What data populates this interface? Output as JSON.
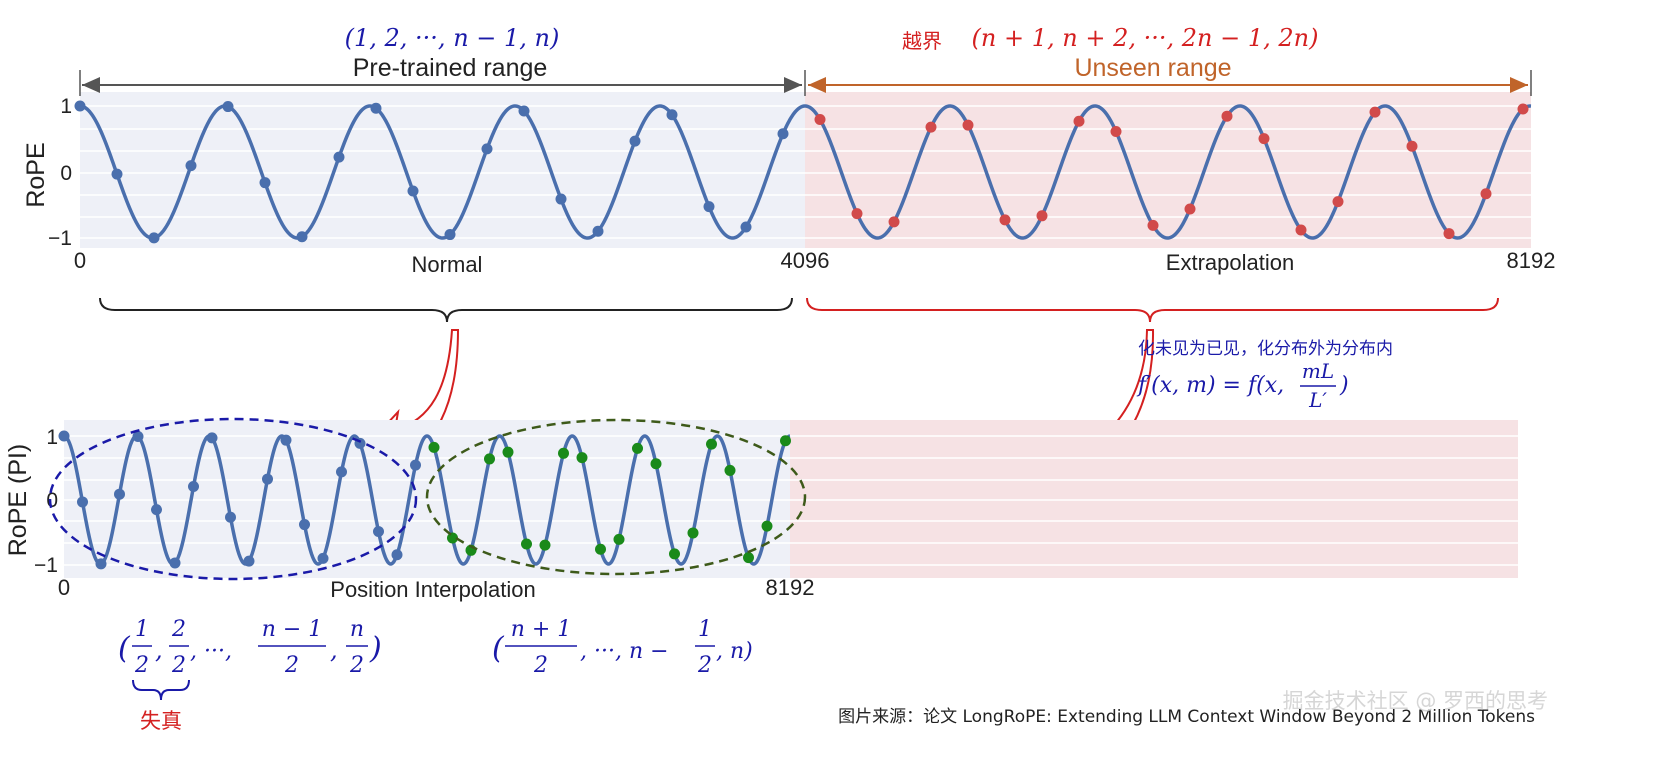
{
  "top": {
    "pretrained_label": "Pre-trained range",
    "pretrained_math": "(1, 2, ···, n − 1, n)",
    "unseen_label": "Unseen range",
    "unseen_prefix_cn": "越界",
    "unseen_math": "(n + 1, n + 2, ···, 2n − 1, 2n)",
    "ylabel": "RoPE",
    "yticks": [
      "1",
      "0",
      "−1"
    ],
    "xticks": [
      "0",
      "4096",
      "8192"
    ],
    "normal_label": "Normal",
    "extrapolation_label": "Extrapolation"
  },
  "annotation": {
    "cn_text": "化未见为已见，化分布外为分布内",
    "formula_lhs": "f′(x, m) = f(x,",
    "formula_num": "mL",
    "formula_den": "L′",
    "formula_close": ")"
  },
  "bottom": {
    "ylabel": "RoPE (PI)",
    "yticks": [
      "1",
      "0",
      "−1"
    ],
    "xticks": [
      "0",
      "8192"
    ],
    "pi_label": "Position Interpolation",
    "left_math": {
      "open": "(",
      "f1_num": "1",
      "f1_den": "2",
      "f2_num": "2",
      "f2_den": "2",
      "dots": ", ···,",
      "f3_num": "n − 1",
      "f3_den": "2",
      "f4_num": "n",
      "f4_den": "2",
      "close": ")"
    },
    "right_math": {
      "open": "(",
      "f1_num": "n + 1",
      "f1_den": "2",
      "mid": ", ···, n −",
      "f2_num": "1",
      "f2_den": "2",
      "close": ", n)"
    },
    "distortion_cn": "失真"
  },
  "footer": {
    "source": "图片来源：论文 LongRoPE: Extending LLM Context Window Beyond 2 Million Tokens",
    "watermark": "掘金技术社区 @ 罗西的思考"
  },
  "colors": {
    "wave": "#4a6fad",
    "blue_dot": "#4a6fad",
    "red_dot": "#d14a4a",
    "green_dot": "#1a8a1a",
    "pretrained_bg": "#eef0f7",
    "unseen_bg": "#f6e2e4",
    "math_blue": "#1a1aa8",
    "math_red": "#d42020",
    "unseen_orange": "#c0642a"
  }
}
